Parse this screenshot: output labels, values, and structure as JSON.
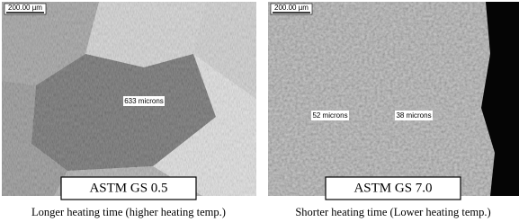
{
  "panels": [
    {
      "scale_bar": "200.00 µm",
      "annotations": [
        "633 microns"
      ],
      "grain_size": "ASTM GS 0.5",
      "caption": "Longer heating time (higher heating temp.)"
    },
    {
      "scale_bar": "200.00 µm",
      "annotations": [
        "52 microns",
        "38 microns"
      ],
      "grain_size": "ASTM GS 7.0",
      "caption": "Shorter heating time (Lower heating temp.)"
    }
  ]
}
